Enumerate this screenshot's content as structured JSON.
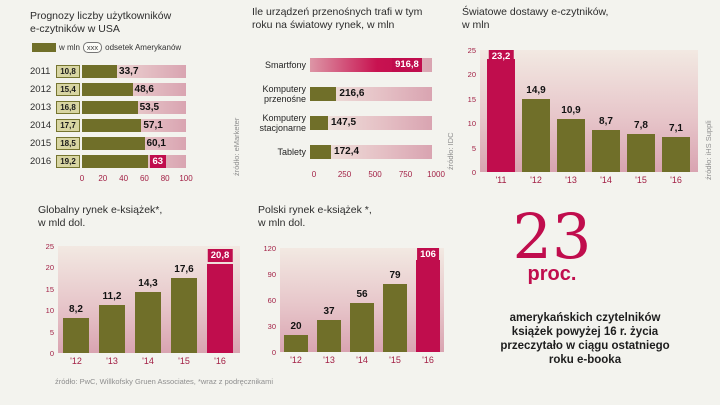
{
  "colors": {
    "olive": "#706f29",
    "crimson": "#c00d4d",
    "axis_red": "#a22045",
    "track_pink_light": "#f1e7df",
    "track_pink_dark": "#d9a4b1",
    "mln_box_bg": "#d8d5a2"
  },
  "chart_data": [
    {
      "id": "usa-ereader-users",
      "type": "bar",
      "orientation": "horizontal",
      "title": "Prognozy liczby użytkowników e-czytników w USA",
      "title_line1": "Prognozy liczby użytkowników",
      "title_line2": "e-czytników w USA",
      "legend_mln": "w mln",
      "legend_xxx": "xxx",
      "legend_pct": "odsetek Amerykanów",
      "categories": [
        "2011",
        "2012",
        "2013",
        "2014",
        "2015",
        "2016"
      ],
      "series": [
        {
          "name": "w mln",
          "labels": [
            "10,8",
            "15,4",
            "16,8",
            "17,7",
            "18,5",
            "19,2"
          ],
          "values": [
            10.8,
            15.4,
            16.8,
            17.7,
            18.5,
            19.2
          ]
        },
        {
          "name": "odsetek Amerykanów",
          "labels": [
            "33,7",
            "48,6",
            "53,5",
            "57,1",
            "60,1",
            "63"
          ],
          "values": [
            33.7,
            48.6,
            53.5,
            57.1,
            60.1,
            63
          ]
        }
      ],
      "xlim": [
        0,
        100
      ],
      "x_ticks": [
        "0",
        "20",
        "40",
        "60",
        "80",
        "100"
      ],
      "highlight_index": 5,
      "source": "źródło: eMarketer"
    },
    {
      "id": "mobile-devices-shipments",
      "type": "bar",
      "orientation": "horizontal",
      "title": "Ile urządzeń przenośnych trafi w tym roku na światowy rynek, w mln",
      "title_line1": "Ile urządzeń przenośnych trafi w tym",
      "title_line2": "roku na światowy rynek, w mln",
      "categories": [
        "Smartfony",
        "Komputery przenośne",
        "Komputery stacjonarne",
        "Tablety"
      ],
      "categories_lines": [
        [
          "Smartfony"
        ],
        [
          "Komputery",
          "przenośne"
        ],
        [
          "Komputery",
          "stacjonarne"
        ],
        [
          "Tablety"
        ]
      ],
      "values": [
        916.8,
        216.6,
        147.5,
        172.4
      ],
      "labels": [
        "916,8",
        "216,6",
        "147,5",
        "172,4"
      ],
      "xlim": [
        0,
        1000
      ],
      "x_ticks": [
        "0",
        "250",
        "500",
        "750",
        "1000"
      ],
      "highlight_index": 0,
      "source": "źródło: IDC"
    },
    {
      "id": "world-ereader-shipments",
      "type": "bar",
      "orientation": "vertical",
      "title": "Światowe dostawy e-czytników, w mln",
      "title_line1": "Światowe dostawy e-czytników,",
      "title_line2": "w mln",
      "categories": [
        "'11",
        "'12",
        "'13",
        "'14",
        "'15",
        "'16"
      ],
      "values": [
        23.2,
        14.9,
        10.9,
        8.7,
        7.8,
        7.1
      ],
      "labels": [
        "23,2",
        "14,9",
        "10,9",
        "8,7",
        "7,8",
        "7,1"
      ],
      "ylim": [
        0,
        25
      ],
      "y_ticks": [
        "0",
        "5",
        "10",
        "15",
        "20",
        "25"
      ],
      "highlight_index": 0,
      "source": "źródło: iHS Suppli"
    },
    {
      "id": "global-ebook-market",
      "type": "bar",
      "orientation": "vertical",
      "title": "Globalny rynek e-książek*, w mld dol.",
      "title_line1": "Globalny rynek e-książek*,",
      "title_line2": "w mld dol.",
      "categories": [
        "'12",
        "'13",
        "'14",
        "'15",
        "'16"
      ],
      "values": [
        8.2,
        11.2,
        14.3,
        17.6,
        20.8
      ],
      "labels": [
        "8,2",
        "11,2",
        "14,3",
        "17,6",
        "20,8"
      ],
      "ylim": [
        0,
        25
      ],
      "y_ticks": [
        "0",
        "5",
        "10",
        "15",
        "20",
        "25"
      ],
      "highlight_index": 4,
      "source": "źródło: PwC, Willkofsky Gruen Associates, *wraz z podręcznikami"
    },
    {
      "id": "polish-ebook-market",
      "type": "bar",
      "orientation": "vertical",
      "title": "Polski rynek e-książek *, w mln dol.",
      "title_line1": "Polski rynek e-książek *,",
      "title_line2": "w mln dol.",
      "categories": [
        "'12",
        "'13",
        "'14",
        "'15",
        "'16"
      ],
      "values": [
        20,
        37,
        56,
        79,
        106
      ],
      "labels": [
        "20",
        "37",
        "56",
        "79",
        "106"
      ],
      "ylim": [
        0,
        120
      ],
      "y_ticks": [
        "0",
        "30",
        "60",
        "90",
        "120"
      ],
      "highlight_index": 4
    }
  ],
  "stat": {
    "number": "23",
    "unit": "proc.",
    "lines": [
      "amerykańskich czytelników",
      "książek powyżej 16 r. życia",
      "przeczytało w ciągu ostatniego",
      "roku e-booka"
    ]
  }
}
